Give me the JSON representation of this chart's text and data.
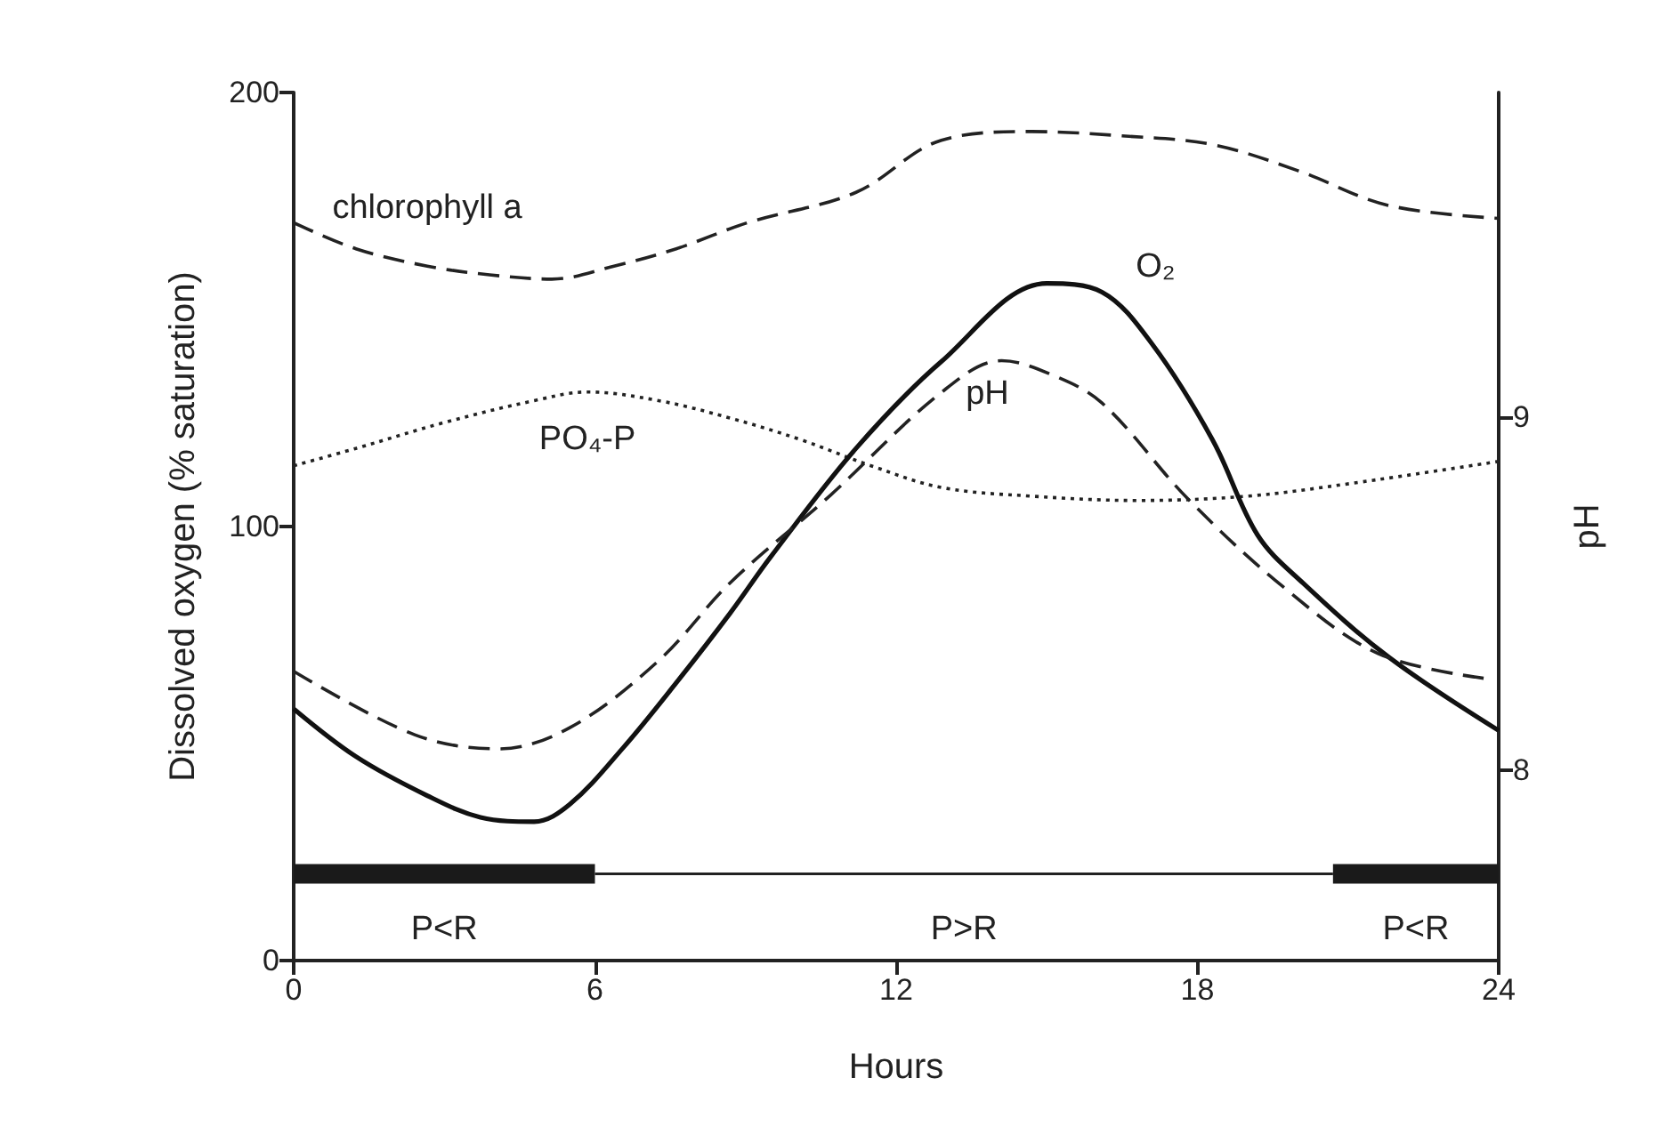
{
  "chart_data": {
    "type": "line",
    "xlabel": "Hours",
    "ylabel": "Dissolved oxygen (% saturation)",
    "y2label": "pH",
    "xlim": [
      0,
      24
    ],
    "xticks": [
      0,
      6,
      12,
      18,
      24
    ],
    "ylim": [
      0,
      200
    ],
    "yticks": [
      0,
      100,
      200
    ],
    "y2lim": [
      7.46,
      9.92
    ],
    "y2ticks": [
      8,
      9
    ],
    "grid": false,
    "legend": false,
    "marker": "none",
    "series": [
      {
        "name": "chlorophyll a",
        "color": "#222222",
        "line_style": "dashed",
        "x": [
          0,
          1.24,
          2.66,
          3.9,
          5.14,
          6.38,
          7.62,
          9.04,
          11.2,
          12.9,
          14.7,
          16.5,
          18.3,
          20.0,
          21.8,
          24
        ],
        "values": [
          170,
          164,
          160,
          158,
          157,
          160,
          164,
          170,
          177,
          189,
          191,
          190,
          188,
          182,
          174,
          171
        ]
      },
      {
        "name": "PO₄-P",
        "color": "#222222",
        "line_style": "dotted",
        "x": [
          0,
          1.24,
          3.01,
          4.79,
          5.85,
          7.27,
          8.69,
          10.1,
          11.5,
          12.9,
          14.7,
          16.8,
          19.0,
          21.1,
          24
        ],
        "values": [
          114,
          118,
          124,
          129,
          131,
          129,
          125,
          120,
          114,
          109,
          107,
          106,
          107,
          110,
          115
        ]
      },
      {
        "name": "O₂",
        "color": "#111111",
        "line_style": "solid",
        "x": [
          0,
          1.24,
          2.66,
          3.72,
          4.79,
          5.5,
          6.56,
          7.62,
          8.69,
          9.5,
          11.2,
          12.9,
          15.0,
          16.1,
          17.1,
          18.3,
          19.2,
          20.1,
          21.8,
          24
        ],
        "values": [
          58,
          47,
          38,
          33,
          32,
          36,
          49,
          64,
          80,
          93,
          118,
          138,
          156,
          154,
          142,
          120,
          98,
          87,
          70,
          53
        ]
      },
      {
        "name": "pH",
        "color": "#222222",
        "line_style": "dashed",
        "axis": "y2",
        "x": [
          0,
          2.41,
          4.08,
          5.5,
          7.27,
          8.69,
          10.7,
          12.9,
          14.1,
          15.1,
          16.1,
          17.8,
          19.7,
          21.6,
          23.7
        ],
        "values": [
          8.28,
          8.1,
          8.06,
          8.12,
          8.31,
          8.53,
          8.78,
          9.07,
          9.16,
          9.12,
          9.04,
          8.77,
          8.52,
          8.33,
          8.26
        ]
      },
      {
        "name": "P<R",
        "color": "#1a1a1a",
        "line_style": "solid",
        "x": [
          0,
          6
        ],
        "values": [
          20,
          20
        ]
      },
      {
        "name": "P>R",
        "color": "#222222",
        "line_style": "solid",
        "x": [
          6,
          20.7
        ],
        "values": [
          20,
          20
        ]
      },
      {
        "name": "P<R",
        "color": "#1a1a1a",
        "line_style": "solid",
        "x": [
          20.7,
          24
        ],
        "values": [
          20,
          20
        ]
      }
    ]
  }
}
